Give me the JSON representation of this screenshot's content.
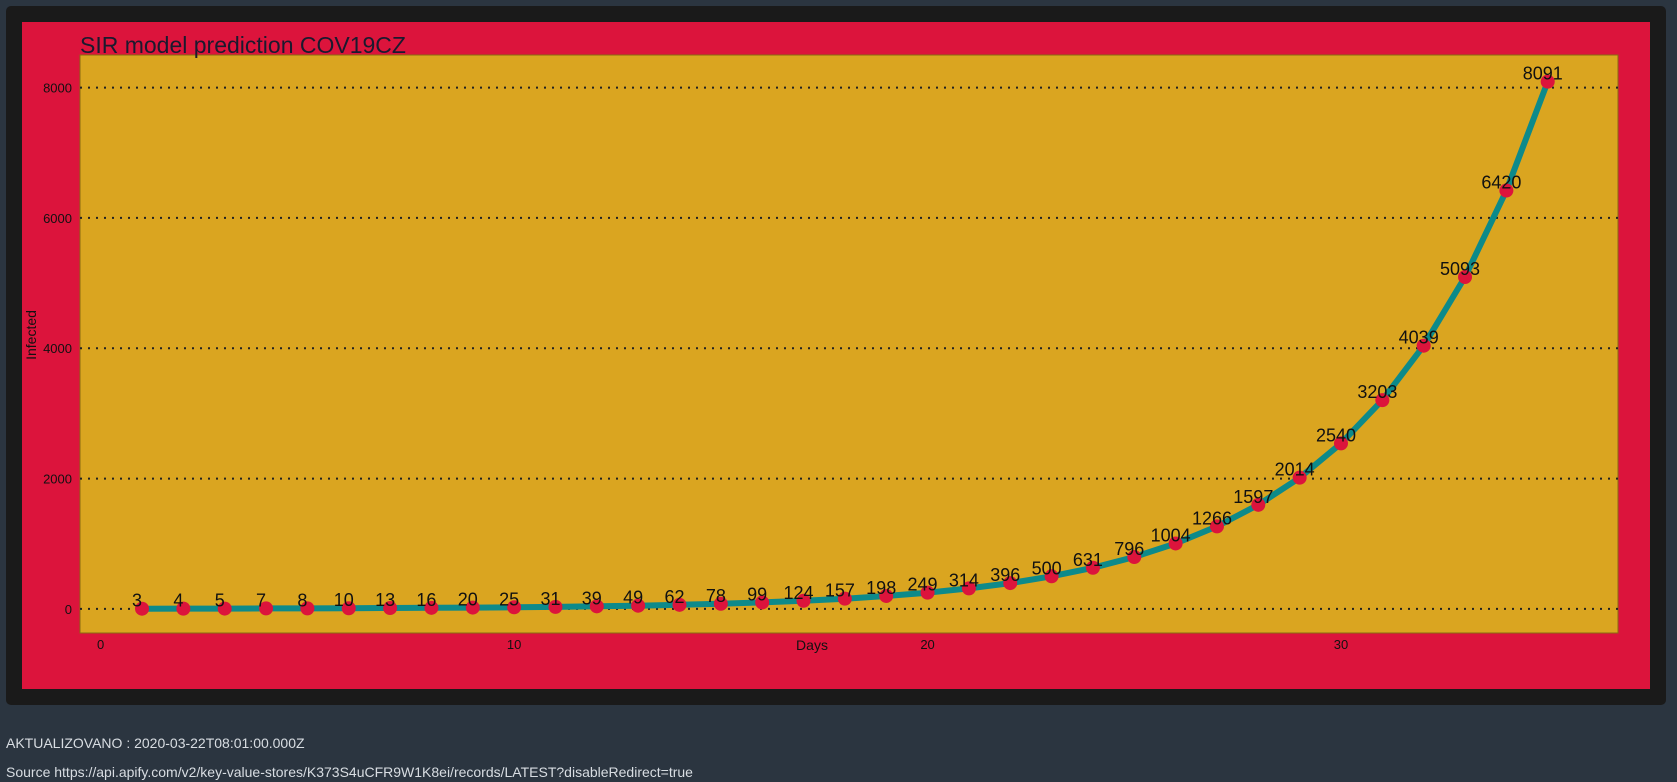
{
  "chart_data": {
    "type": "line",
    "title": "SIR model prediction COV19CZ",
    "xlabel": "Days",
    "ylabel": "Infected",
    "xlim": [
      -0.5,
      36.7
    ],
    "ylim": [
      -370,
      8500
    ],
    "xticks": [
      0,
      10,
      20,
      30
    ],
    "yticks": [
      0,
      2000,
      4000,
      6000,
      8000
    ],
    "grid": "horizontal dotted",
    "x": [
      1,
      2,
      3,
      4,
      5,
      6,
      7,
      8,
      9,
      10,
      11,
      12,
      13,
      14,
      15,
      16,
      17,
      18,
      19,
      20,
      21,
      22,
      23,
      24,
      25,
      26,
      27,
      28,
      29,
      30,
      31,
      32,
      33,
      34,
      35
    ],
    "values": [
      3,
      4,
      5,
      7,
      8,
      10,
      13,
      16,
      20,
      25,
      31,
      39,
      49,
      62,
      78,
      99,
      124,
      157,
      198,
      249,
      314,
      396,
      500,
      631,
      796,
      1004,
      1266,
      1597,
      2014,
      2540,
      3203,
      4039,
      5093,
      6420,
      8091
    ],
    "colors": {
      "line": "#0d8a8a",
      "marker": "#dc143c",
      "plot_background": "#daa520",
      "figure_background": "#dc143c"
    }
  },
  "footer": {
    "updated": "AKTUALIZOVANO : 2020-03-22T08:01:00.000Z",
    "source": "Source https://api.apify.com/v2/key-value-stores/K373S4uCFR9W1K8ei/records/LATEST?disableRedirect=true"
  }
}
